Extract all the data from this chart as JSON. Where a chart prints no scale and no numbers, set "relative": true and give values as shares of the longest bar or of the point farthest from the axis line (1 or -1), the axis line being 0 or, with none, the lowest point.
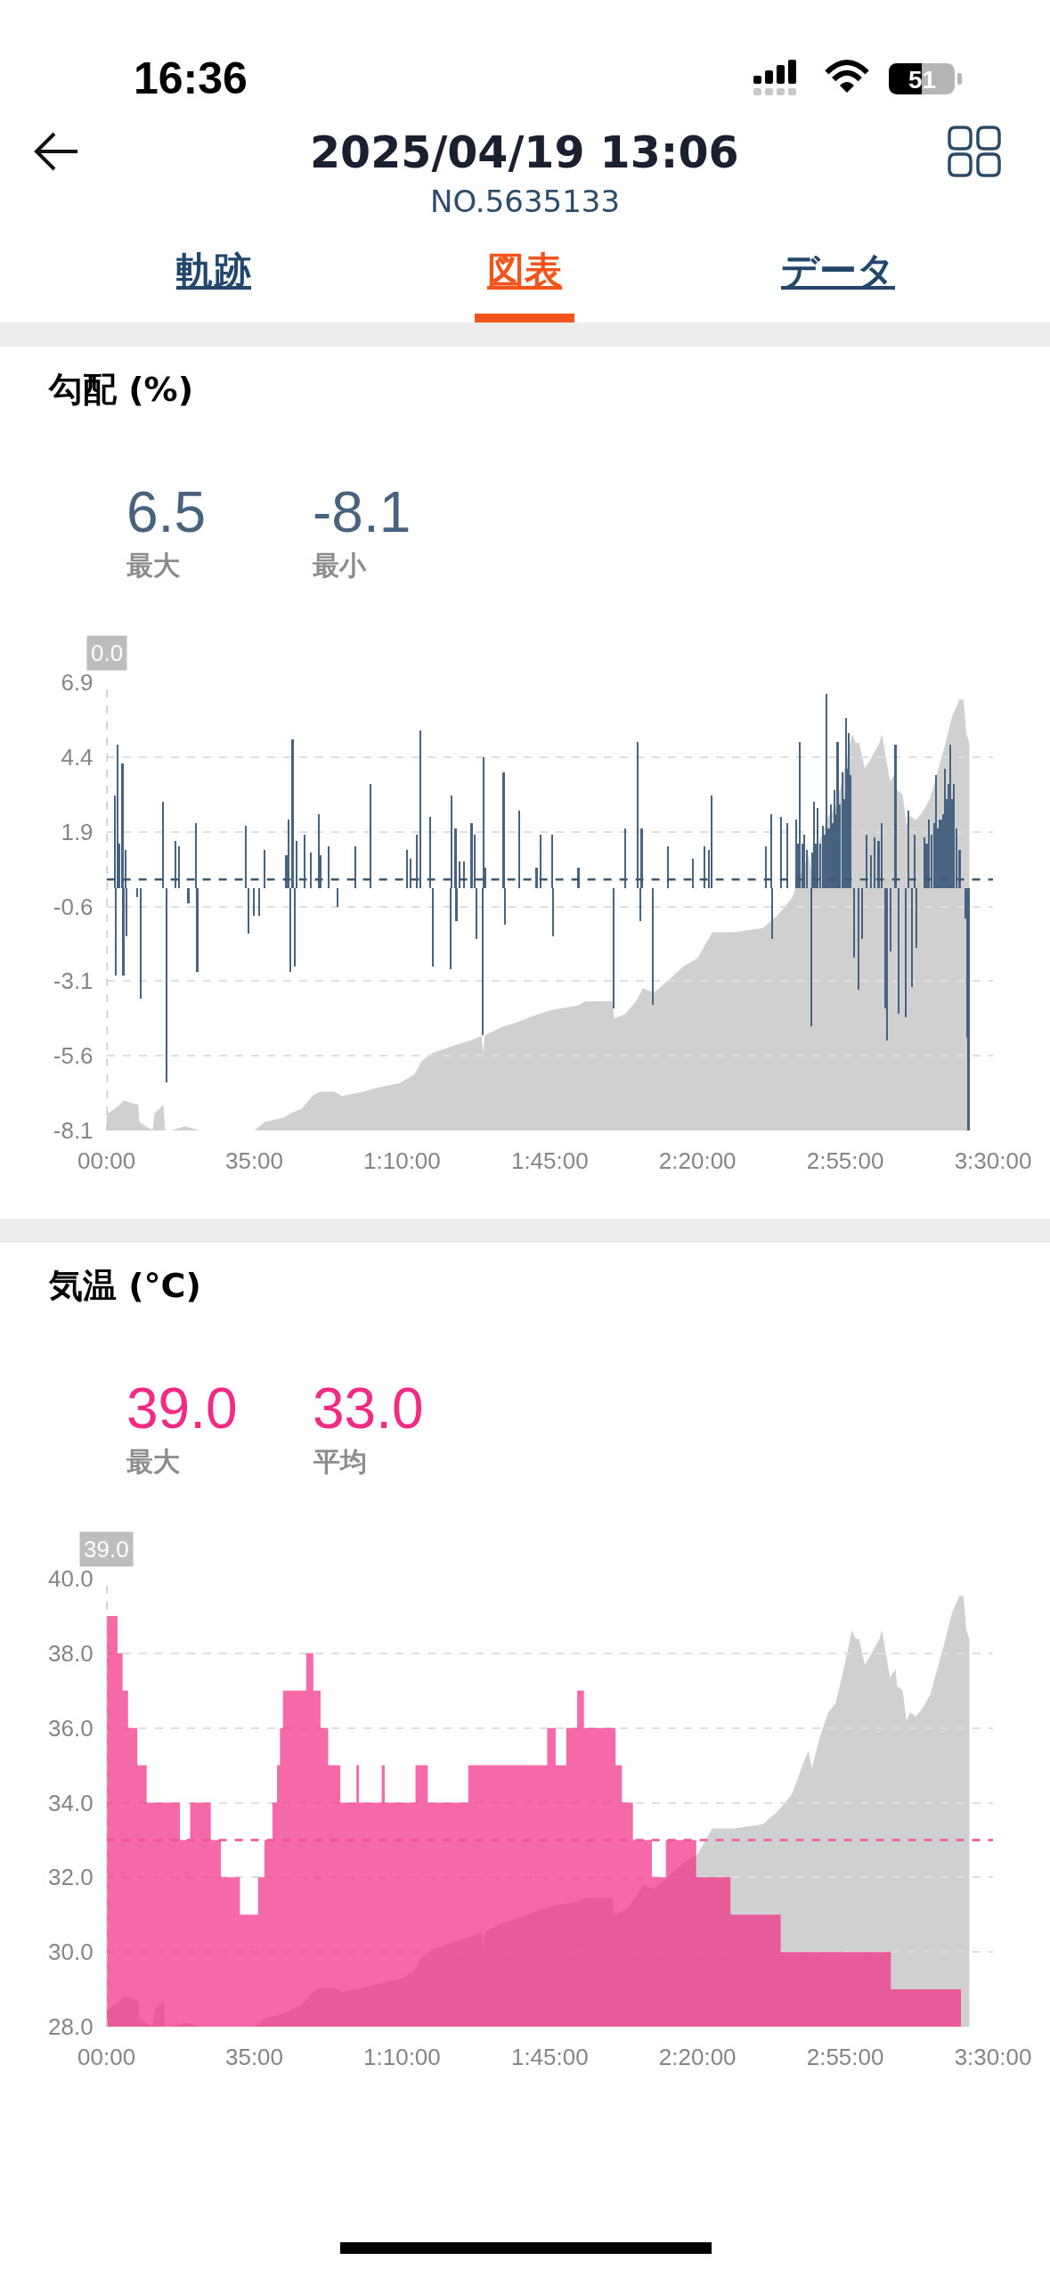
{
  "chart_data": [
    {
      "type": "other",
      "title": "2025/04/19 13:06",
      "subtitle": "NO.5635133",
      "annotations": [
        "16:36",
        "51",
        "軌跡",
        "図表",
        "データ"
      ]
    },
    {
      "type": "bar",
      "title": "勾配 (%)",
      "annotations": [
        "6.5",
        "最大",
        "-8.1",
        "最小",
        "0.0"
      ],
      "xlim": [
        0,
        210
      ],
      "xticks": [
        {
          "value": 0,
          "label": "00:00"
        },
        {
          "value": 35,
          "label": "35:00"
        },
        {
          "value": 70,
          "label": "1:10:00"
        },
        {
          "value": 105,
          "label": "1:45:00"
        },
        {
          "value": 140,
          "label": "2:20:00"
        },
        {
          "value": 175,
          "label": "2:55:00"
        },
        {
          "value": 210,
          "label": "3:30:00"
        }
      ],
      "ylim": [
        -8.1,
        6.9
      ],
      "yticks": [
        6.9,
        4.4,
        1.9,
        -0.6,
        -3.1,
        -5.6,
        -8.1
      ],
      "grid": "y",
      "ref_lines": [
        {
          "axis": "x",
          "value": 0,
          "color": "#bdbdbd",
          "line_style": "dashed"
        },
        {
          "axis": "y",
          "value": 0.3,
          "color": "#3e5870",
          "line_style": "dashed"
        }
      ],
      "color": "#48637f",
      "x": [
        1.9,
        2.1,
        2.5,
        3.0,
        3.7,
        3.9,
        4.4,
        4.7,
        7.1,
        8.0,
        13.3,
        14.1,
        16.3,
        17.1,
        19.3,
        21.1,
        21.4,
        33.0,
        33.5,
        34.8,
        36.0,
        37.3,
        42.5,
        43.1,
        43.5,
        44.0,
        44.5,
        44.9,
        46.9,
        48.4,
        50.2,
        50.7,
        52.5,
        54.7,
        58.9,
        62.4,
        71.1,
        72.0,
        73.5,
        74.3,
        76.6,
        77.3,
        81.4,
        81.7,
        82.6,
        82.8,
        83.5,
        84.6,
        86.4,
        87.2,
        87.5,
        89.0,
        89.3,
        89.7,
        94.0,
        94.3,
        97.6,
        101.8,
        102.8,
        105.4,
        105.7,
        111.7,
        120.1,
        122.7,
        125.8,
        126.4,
        126.7,
        129.4,
        133.0,
        138.9,
        141.5,
        142.6,
        143.2,
        156.2,
        157.4,
        157.6,
        159.7,
        161.2,
        163.3,
        163.8,
        164.2,
        164.7,
        165.2,
        165.8,
        166.8,
        167.1,
        167.6,
        168.0,
        168.4,
        169.0,
        169.7,
        170.1,
        170.5,
        171.0,
        171.5,
        171.9,
        172.3,
        172.7,
        173.1,
        173.7,
        174.3,
        174.7,
        175.1,
        175.4,
        175.7,
        176.2,
        177.0,
        178.1,
        178.9,
        179.9,
        181.0,
        181.9,
        182.8,
        183.5,
        184.3,
        184.9,
        185.7,
        186.8,
        187.5,
        189.2,
        189.8,
        190.8,
        191.3,
        191.7,
        193.7,
        194.2,
        194.8,
        195.3,
        195.9,
        196.4,
        196.9,
        197.3,
        197.7,
        198.1,
        198.5,
        198.9,
        199.4,
        199.8,
        200.3,
        200.7,
        201.3,
        202.0,
        203.4,
        203.8,
        204.1
      ],
      "values": [
        3.1,
        -2.9,
        4.8,
        1.5,
        4.2,
        -2.9,
        1.3,
        -1.6,
        -0.3,
        -3.7,
        2.9,
        -6.5,
        1.6,
        1.4,
        -0.5,
        2.2,
        -2.8,
        2.1,
        -1.5,
        -0.9,
        -0.9,
        1.3,
        1.1,
        2.3,
        -2.8,
        5.0,
        -2.6,
        1.6,
        1.8,
        1.2,
        2.5,
        1.1,
        1.4,
        -0.6,
        1.4,
        3.5,
        1.3,
        1.0,
        1.8,
        5.3,
        2.4,
        -2.6,
        -2.7,
        3.1,
        2.0,
        -1.1,
        0.9,
        0.9,
        2.2,
        1.8,
        -1.7,
        -4.9,
        4.4,
        0.7,
        3.9,
        -1.2,
        2.6,
        0.7,
        1.8,
        1.8,
        -1.6,
        0.7,
        -4.0,
        2.0,
        4.9,
        -1.1,
        2.0,
        -3.9,
        1.4,
        1.0,
        1.4,
        1.3,
        3.1,
        1.4,
        2.5,
        -1.7,
        2.4,
        2.2,
        2.3,
        1.5,
        4.9,
        1.5,
        1.8,
        1.3,
        -4.6,
        1.2,
        2.9,
        1.5,
        2.7,
        1.5,
        2.1,
        1.8,
        6.5,
        2.0,
        2.8,
        2.2,
        3.3,
        2.5,
        4.9,
        2.8,
        3.9,
        3.0,
        5.7,
        4.0,
        5.2,
        3.8,
        -2.3,
        -3.4,
        -1.7,
        1.8,
        1.1,
        1.7,
        1.6,
        2.2,
        -4.0,
        -5.1,
        -2.1,
        4.8,
        -4.2,
        -4.3,
        2.6,
        -3.3,
        1.8,
        -2.0,
        1.7,
        1.5,
        2.3,
        1.8,
        2.2,
        3.8,
        2.0,
        2.3,
        2.3,
        2.5,
        4.0,
        3.0,
        3.5,
        4.8,
        3.0,
        3.5,
        2.0,
        1.3,
        -1.0,
        -5.0,
        -8.1
      ]
    },
    {
      "type": "area",
      "relative": true,
      "tick_labels": false,
      "xlim": [
        0,
        210
      ],
      "color": "#d0d0d0",
      "x": [
        0,
        0.4,
        3.2,
        4.0,
        7.5,
        7.8,
        10.9,
        11.4,
        13.5,
        13.9,
        15.2,
        18.7,
        22.1,
        35.0,
        37.6,
        41.9,
        43.6,
        46.2,
        48.8,
        50.5,
        54.0,
        55.7,
        60.8,
        64.3,
        69.4,
        72.9,
        74.6,
        77.2,
        83.2,
        86.6,
        88.8,
        89.2,
        89.6,
        93.5,
        97.0,
        102.2,
        105.6,
        111.7,
        113.4,
        119.8,
        120.3,
        122.8,
        125.4,
        127.1,
        129.7,
        133.2,
        136.6,
        140.0,
        143.5,
        148.6,
        155.5,
        159.0,
        162.4,
        165.0,
        166.3,
        167.1,
        168.9,
        171.0,
        172.7,
        174.4,
        176.6,
        177.5,
        178.3,
        179.6,
        180.9,
        183.1,
        183.7,
        185.6,
        186.9,
        187.3,
        188.6,
        189.5,
        190.4,
        191.7,
        193.4,
        195.1,
        196.8,
        198.5,
        200.3,
        202.0,
        203.0,
        203.7,
        204.4
      ],
      "values": [
        0.04,
        0.04,
        0.06,
        0.07,
        0.06,
        0.02,
        0.0,
        0.04,
        0.06,
        0.0,
        0.0,
        0.01,
        0.0,
        0.0,
        0.02,
        0.03,
        0.04,
        0.05,
        0.08,
        0.09,
        0.09,
        0.08,
        0.09,
        0.1,
        0.11,
        0.13,
        0.16,
        0.18,
        0.2,
        0.21,
        0.22,
        0.18,
        0.22,
        0.24,
        0.25,
        0.27,
        0.28,
        0.29,
        0.3,
        0.3,
        0.26,
        0.27,
        0.3,
        0.33,
        0.32,
        0.35,
        0.38,
        0.4,
        0.46,
        0.46,
        0.47,
        0.5,
        0.54,
        0.61,
        0.64,
        0.6,
        0.67,
        0.73,
        0.75,
        0.82,
        0.92,
        0.9,
        0.9,
        0.84,
        0.86,
        0.9,
        0.92,
        0.81,
        0.83,
        0.79,
        0.78,
        0.71,
        0.73,
        0.72,
        0.74,
        0.77,
        0.83,
        0.89,
        0.96,
        1.0,
        1.0,
        0.92,
        0.9
      ]
    },
    {
      "type": "area",
      "title": "気温 (°C)",
      "annotations": [
        "39.0",
        "最大",
        "33.0",
        "平均",
        "39.0"
      ],
      "xlim": [
        0,
        210
      ],
      "xticks": [
        {
          "value": 0,
          "label": "00:00"
        },
        {
          "value": 35,
          "label": "35:00"
        },
        {
          "value": 70,
          "label": "1:10:00"
        },
        {
          "value": 105,
          "label": "1:45:00"
        },
        {
          "value": 140,
          "label": "2:20:00"
        },
        {
          "value": 175,
          "label": "2:55:00"
        },
        {
          "value": 210,
          "label": "3:30:00"
        }
      ],
      "ylim": [
        28,
        40
      ],
      "yticks": [
        {
          "value": 40,
          "label": "40.0"
        },
        {
          "value": 38,
          "label": "38.0"
        },
        {
          "value": 36,
          "label": "36.0"
        },
        {
          "value": 34,
          "label": "34.0"
        },
        {
          "value": 32,
          "label": "32.0"
        },
        {
          "value": 30,
          "label": "30.0"
        },
        {
          "value": 28,
          "label": "28.0"
        }
      ],
      "grid": "y",
      "ref_lines": [
        {
          "axis": "x",
          "value": 0,
          "color": "#bdbdbd",
          "line_style": "dashed"
        },
        {
          "axis": "y",
          "value": 33,
          "color": "#f0509a",
          "line_style": "dashed"
        }
      ],
      "color": "#f12a84",
      "x": [
        0,
        2.6,
        2.6,
        3.8,
        3.8,
        5.1,
        5.1,
        7.3,
        7.3,
        9.5,
        9.5,
        17.4,
        17.4,
        19.8,
        19.8,
        24.7,
        24.7,
        27.1,
        27.1,
        31.6,
        31.6,
        35.9,
        35.9,
        37.4,
        37.4,
        39.3,
        39.3,
        40.4,
        40.4,
        41.1,
        41.1,
        41.8,
        41.8,
        47.3,
        47.3,
        49.0,
        49.0,
        50.7,
        50.7,
        52.5,
        52.5,
        55.4,
        55.4,
        59.2,
        59.2,
        59.8,
        59.8,
        65.2,
        65.2,
        65.9,
        65.9,
        73.2,
        73.2,
        76.1,
        76.1,
        85.7,
        85.7,
        104.4,
        104.4,
        106.4,
        106.4,
        108.9,
        108.9,
        111.5,
        111.5,
        113.1,
        113.1,
        120.6,
        120.6,
        122.1,
        122.1,
        124.7,
        124.7,
        129.2,
        129.2,
        132.5,
        132.5,
        139.7,
        139.7,
        147.8,
        147.8,
        159.7,
        159.7,
        185.8,
        185.8,
        202.4
      ],
      "values": [
        39,
        39,
        38,
        38,
        37,
        37,
        36,
        36,
        35,
        35,
        34,
        34,
        33,
        33,
        34,
        34,
        33,
        33,
        32,
        32,
        31,
        31,
        32,
        32,
        33,
        33,
        34,
        34,
        35,
        35,
        36,
        36,
        37,
        37,
        38,
        38,
        37,
        37,
        36,
        36,
        35,
        35,
        34,
        34,
        35,
        35,
        34,
        34,
        35,
        35,
        34,
        34,
        35,
        35,
        34,
        34,
        35,
        35,
        36,
        36,
        35,
        35,
        36,
        36,
        37,
        37,
        36,
        36,
        35,
        35,
        34,
        34,
        33,
        33,
        32,
        32,
        33,
        33,
        32,
        32,
        31,
        31,
        30,
        30,
        29,
        29
      ]
    },
    {
      "type": "area",
      "relative": true,
      "tick_labels": false,
      "xlim": [
        0,
        210
      ],
      "color": "#d0d0d0",
      "x": [
        0,
        0.4,
        3.2,
        4.0,
        7.5,
        7.8,
        10.9,
        11.4,
        13.5,
        13.9,
        15.2,
        18.7,
        22.1,
        35.0,
        37.6,
        41.9,
        43.6,
        46.2,
        48.8,
        50.5,
        54.0,
        55.7,
        60.8,
        64.3,
        69.4,
        72.9,
        74.6,
        77.2,
        83.2,
        86.6,
        88.8,
        89.2,
        89.6,
        93.5,
        97.0,
        102.2,
        105.6,
        111.7,
        113.4,
        119.8,
        120.3,
        122.8,
        125.4,
        127.1,
        129.7,
        133.2,
        136.6,
        140.0,
        143.5,
        148.6,
        155.5,
        159.0,
        162.4,
        165.0,
        166.3,
        167.1,
        168.9,
        171.0,
        172.7,
        174.4,
        176.6,
        177.5,
        178.3,
        179.6,
        180.9,
        183.1,
        183.7,
        185.6,
        186.9,
        187.3,
        188.6,
        189.5,
        190.4,
        191.7,
        193.4,
        195.1,
        196.8,
        198.5,
        200.3,
        202.0,
        203.0,
        203.7,
        204.4
      ],
      "values": [
        0.04,
        0.04,
        0.06,
        0.07,
        0.06,
        0.02,
        0.0,
        0.04,
        0.06,
        0.0,
        0.0,
        0.01,
        0.0,
        0.0,
        0.02,
        0.03,
        0.04,
        0.05,
        0.08,
        0.09,
        0.09,
        0.08,
        0.09,
        0.1,
        0.11,
        0.13,
        0.16,
        0.18,
        0.2,
        0.21,
        0.22,
        0.18,
        0.22,
        0.24,
        0.25,
        0.27,
        0.28,
        0.29,
        0.3,
        0.3,
        0.26,
        0.27,
        0.3,
        0.33,
        0.32,
        0.35,
        0.38,
        0.4,
        0.46,
        0.46,
        0.47,
        0.5,
        0.54,
        0.61,
        0.64,
        0.6,
        0.67,
        0.73,
        0.75,
        0.82,
        0.92,
        0.9,
        0.9,
        0.84,
        0.86,
        0.9,
        0.92,
        0.81,
        0.83,
        0.79,
        0.78,
        0.71,
        0.73,
        0.72,
        0.74,
        0.77,
        0.83,
        0.89,
        0.96,
        1.0,
        1.0,
        0.92,
        0.9
      ]
    }
  ]
}
